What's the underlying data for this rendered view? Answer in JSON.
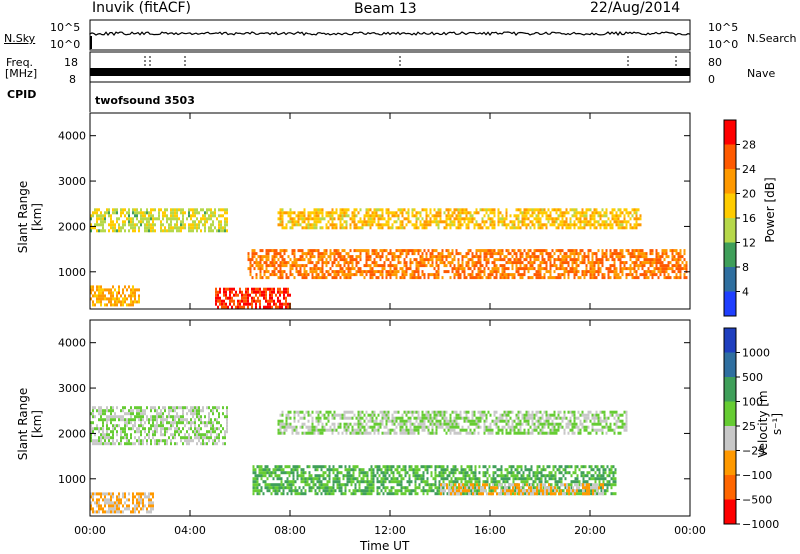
{
  "header": {
    "station": "Inuvik (fitACF)",
    "beam": "Beam 13",
    "date": "22/Aug/2014"
  },
  "strips": {
    "nsky_label": "N.Sky",
    "nsky_ticks": [
      "10^5",
      "10^0"
    ],
    "nsearch_label": "N.Search",
    "nsearch_ticks": [
      "10^5",
      "10^0"
    ],
    "freq_label": "Freq.",
    "freq_unit": "[MHz]",
    "freq_ticks": [
      "18",
      "8"
    ],
    "nave_label": "Nave",
    "nave_ticks": [
      "80",
      "0"
    ],
    "cpid_label": "CPID",
    "cpid_value": "twofsound 3503"
  },
  "power_panel": {
    "ylabel": "Slant Range [km]",
    "yticks": [
      "4000",
      "3000",
      "2000",
      "1000"
    ],
    "colorbar_label": "Power [dB]",
    "colorbar_ticks": [
      "28",
      "24",
      "20",
      "16",
      "12",
      "8",
      "4"
    ],
    "colors": [
      "#ff0000",
      "#ff5a00",
      "#ff9900",
      "#ffcc00",
      "#b6d84a",
      "#3f9f5a",
      "#2f6f9f",
      "#1f3fff"
    ]
  },
  "velocity_panel": {
    "ylabel": "Slant Range [km]",
    "yticks": [
      "4000",
      "3000",
      "2000",
      "1000"
    ],
    "colorbar_label": "Velocity [m s⁻¹]",
    "colorbar_ticks": [
      "1000",
      "500",
      "100",
      "25",
      "−25",
      "−100",
      "−500",
      "−1000"
    ],
    "colors": [
      "#1f3fbf",
      "#2f6fa0",
      "#3f9f5a",
      "#66cc33",
      "#c8c8c8",
      "#ff9900",
      "#ff6600",
      "#ff0000"
    ]
  },
  "xaxis": {
    "ticks": [
      "00:00",
      "04:00",
      "08:00",
      "12:00",
      "16:00",
      "20:00",
      "00:00"
    ],
    "label": "Time UT"
  },
  "chart_data": [
    {
      "type": "heatmap",
      "title": "Power",
      "xlabel": "Time UT",
      "ylabel": "Slant Range [km]",
      "x_range_hours": [
        0,
        24
      ],
      "ylim": [
        180,
        4500
      ],
      "colorbar": "Power [dB]",
      "clim": [
        0,
        30
      ],
      "bands": [
        {
          "t0": 0.0,
          "t1": 5.5,
          "r0": 1900,
          "r1": 2400,
          "level": 14
        },
        {
          "t0": 0.0,
          "t1": 2.0,
          "r0": 300,
          "r1": 700,
          "level": 20
        },
        {
          "t0": 5.0,
          "t1": 8.0,
          "r0": 250,
          "r1": 650,
          "level": 28
        },
        {
          "t0": 6.3,
          "t1": 23.9,
          "r0": 900,
          "r1": 1500,
          "level": 24
        },
        {
          "t0": 7.5,
          "t1": 22.0,
          "r0": 2000,
          "r1": 2400,
          "level": 18
        }
      ]
    },
    {
      "type": "heatmap",
      "title": "Velocity",
      "xlabel": "Time UT",
      "ylabel": "Slant Range [km]",
      "x_range_hours": [
        0,
        24
      ],
      "ylim": [
        180,
        4500
      ],
      "colorbar": "Velocity [m s-1]",
      "clim": [
        -1000,
        1000
      ],
      "bands": [
        {
          "t0": 0.0,
          "t1": 5.5,
          "r0": 1800,
          "r1": 2600,
          "level": 0
        },
        {
          "t0": 0.0,
          "t1": 2.5,
          "r0": 300,
          "r1": 700,
          "level": -300
        },
        {
          "t0": 7.5,
          "t1": 21.5,
          "r0": 2000,
          "r1": 2500,
          "level": 0
        },
        {
          "t0": 6.5,
          "t1": 21.0,
          "r0": 700,
          "r1": 1300,
          "level": 300
        },
        {
          "t0": 14.0,
          "t1": 20.5,
          "r0": 700,
          "r1": 900,
          "level": -300
        }
      ]
    }
  ]
}
